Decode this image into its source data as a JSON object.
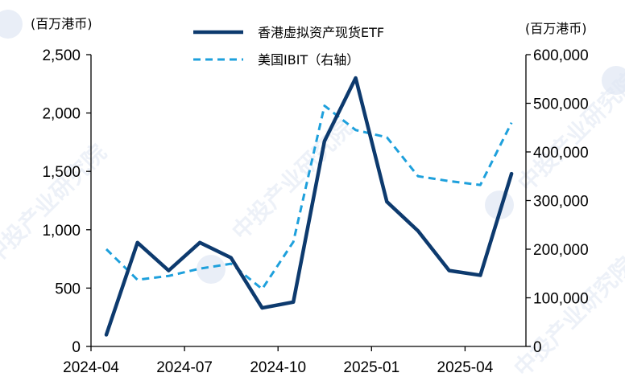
{
  "chart_data": {
    "type": "line",
    "x": [
      "2024-04",
      "2024-05",
      "2024-06",
      "2024-07",
      "2024-08",
      "2024-09",
      "2024-10",
      "2024-11",
      "2024-12",
      "2025-01",
      "2025-02",
      "2025-03",
      "2025-04",
      "2025-05"
    ],
    "xticks": [
      "2024-04",
      "2024-07",
      "2024-10",
      "2025-01",
      "2025-04"
    ],
    "left_axis": {
      "unit_label": "(百万港币)",
      "ylim": [
        0,
        2500
      ],
      "ticks": [
        "0",
        "500",
        "1,000",
        "1,500",
        "2,000",
        "2,500"
      ]
    },
    "right_axis": {
      "unit_label": "(百万港币)",
      "ylim": [
        0,
        600000
      ],
      "ticks": [
        "0",
        "100,000",
        "200,000",
        "300,000",
        "400,000",
        "500,000",
        "600,000"
      ]
    },
    "series": [
      {
        "name": "香港虚拟资产现货ETF",
        "axis": "left",
        "color": "#0d3a6e",
        "style": "solid",
        "values": [
          100,
          890,
          650,
          890,
          760,
          330,
          380,
          1760,
          2300,
          1240,
          990,
          650,
          610,
          1480
        ]
      },
      {
        "name": "美国IBIT（右轴）",
        "axis": "right",
        "color": "#1ea0dc",
        "style": "dashed",
        "values": [
          200000,
          137000,
          145000,
          160000,
          170000,
          118000,
          215000,
          495000,
          445000,
          430000,
          350000,
          340000,
          332000,
          460000
        ]
      }
    ],
    "legend_position": "top-center",
    "grid": false
  },
  "watermark": {
    "text": "中投产业研究院"
  }
}
